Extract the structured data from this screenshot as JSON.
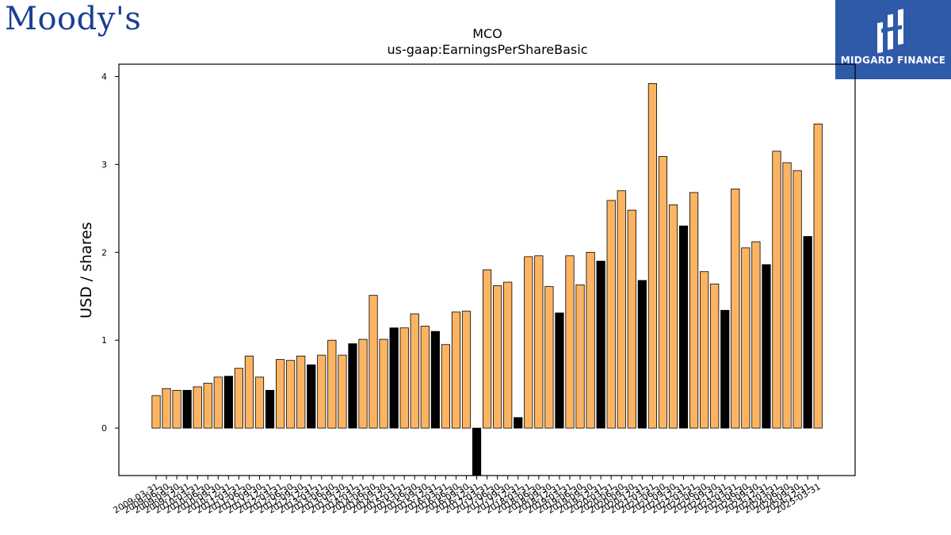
{
  "logos": {
    "left_brand": "Moody's",
    "right_brand": "MIDGARD FINANCE"
  },
  "colors": {
    "bar_default": "#fdb462",
    "bar_highlight": "#000000",
    "bar_edge": "#000000",
    "midgard_bg": "#2f5aa8",
    "moodys_blue": "#1c3f95"
  },
  "chart_data": {
    "type": "bar",
    "title": "MCO",
    "subtitle": "us-gaap:EarningsPerShareBasic",
    "xlabel": "",
    "ylabel": "USD / shares",
    "ylim": [
      -0.54,
      4.14
    ],
    "yticks": [
      0,
      1,
      2,
      3,
      4
    ],
    "grid": false,
    "legend": "none",
    "x_tick_labels": [
      "2009-03-31",
      "2009-06-30",
      "2009-09-30",
      "2009-12-31",
      "2010-03-31",
      "2010-06-30",
      "2010-09-30",
      "2010-12-31",
      "2011-03-31",
      "2011-06-30",
      "2011-09-30",
      "2011-12-31",
      "2012-03-31",
      "2012-06-30",
      "2012-09-30",
      "2012-12-31",
      "2013-03-31",
      "2013-06-30",
      "2013-09-30",
      "2013-12-31",
      "2014-03-31",
      "2014-06-30",
      "2014-09-30",
      "2014-12-31",
      "2015-03-31",
      "2015-06-30",
      "2015-09-30",
      "2015-12-31",
      "2016-03-31",
      "2016-06-30",
      "2016-09-30",
      "2016-12-31",
      "2017-03-31",
      "2017-06-30",
      "2017-09-30",
      "2017-12-31",
      "2018-03-31",
      "2018-06-30",
      "2018-09-30",
      "2018-12-31",
      "2019-03-31",
      "2019-06-30",
      "2019-09-30",
      "2019-12-31",
      "2020-03-31",
      "2020-06-30",
      "2020-09-30",
      "2020-12-31",
      "2021-03-31",
      "2021-06-30",
      "2021-09-30",
      "2021-12-31",
      "2022-03-31",
      "2022-06-30",
      "2022-09-30",
      "2022-12-31",
      "2023-03-31",
      "2023-06-30",
      "2023-09-30",
      "2023-12-31",
      "2024-03-31",
      "2024-06-30",
      "2024-09-30",
      "2024-12-31",
      "2025-03-31"
    ],
    "values": [
      0.37,
      0.45,
      0.43,
      0.43,
      0.47,
      0.51,
      0.58,
      0.59,
      0.68,
      0.82,
      0.58,
      0.43,
      0.78,
      0.77,
      0.82,
      0.72,
      0.83,
      1.0,
      0.83,
      0.96,
      1.01,
      1.51,
      1.01,
      1.14,
      1.14,
      1.3,
      1.16,
      1.1,
      0.95,
      1.32,
      1.33,
      -0.54,
      1.8,
      1.62,
      1.66,
      0.12,
      1.95,
      1.96,
      1.61,
      1.31,
      1.96,
      1.63,
      2.0,
      1.9,
      2.59,
      2.7,
      2.48,
      1.68,
      3.92,
      3.09,
      2.54,
      2.3,
      2.68,
      1.78,
      1.64,
      1.34,
      2.72,
      2.05,
      2.12,
      1.86,
      3.15,
      3.02,
      2.93,
      2.18,
      3.46
    ],
    "highlight": [
      false,
      false,
      false,
      true,
      false,
      false,
      false,
      true,
      false,
      false,
      false,
      true,
      false,
      false,
      false,
      true,
      false,
      false,
      false,
      true,
      false,
      false,
      false,
      true,
      false,
      false,
      false,
      true,
      false,
      false,
      false,
      true,
      false,
      false,
      false,
      true,
      false,
      false,
      false,
      true,
      false,
      false,
      false,
      true,
      false,
      false,
      false,
      true,
      false,
      false,
      false,
      true,
      false,
      false,
      false,
      true,
      false,
      false,
      false,
      true,
      false,
      false,
      false,
      true,
      false
    ]
  }
}
